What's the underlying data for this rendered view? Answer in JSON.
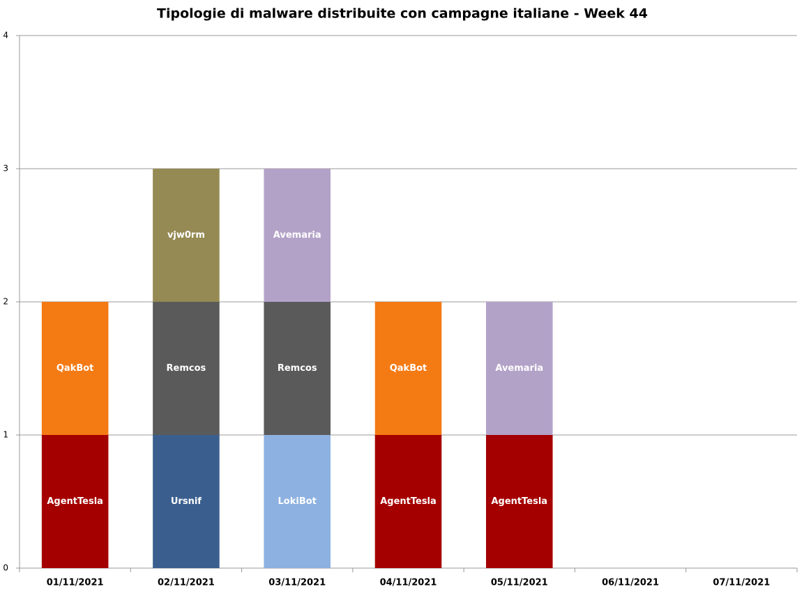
{
  "chart_data": {
    "type": "stacked_bar",
    "title": "Tipologie di malware distribuite con campagne italiane - Week 44",
    "categories": [
      "01/11/2021",
      "02/11/2021",
      "03/11/2021",
      "04/11/2021",
      "05/11/2021",
      "06/11/2021",
      "07/11/2021"
    ],
    "series": [
      {
        "name": "AgentTesla",
        "color": "#a50000",
        "values": [
          1,
          0,
          0,
          1,
          1,
          0,
          0
        ]
      },
      {
        "name": "Ursnif",
        "color": "#3a5f8f",
        "values": [
          0,
          1,
          0,
          0,
          0,
          0,
          0
        ]
      },
      {
        "name": "LokiBot",
        "color": "#8db1e1",
        "values": [
          0,
          0,
          1,
          0,
          0,
          0,
          0
        ]
      },
      {
        "name": "QakBot",
        "color": "#f47a14",
        "values": [
          1,
          0,
          0,
          1,
          0,
          0,
          0
        ]
      },
      {
        "name": "Remcos",
        "color": "#5a5a5a",
        "values": [
          0,
          1,
          1,
          0,
          0,
          0,
          0
        ]
      },
      {
        "name": "Avemaria",
        "color": "#b3a2c8",
        "values": [
          0,
          0,
          1,
          0,
          1,
          0,
          0
        ]
      },
      {
        "name": "vjw0rm",
        "color": "#958a53",
        "values": [
          0,
          1,
          0,
          0,
          0,
          0,
          0
        ]
      }
    ],
    "ylim": [
      0,
      4
    ],
    "yticks": [
      0,
      1,
      2,
      3,
      4
    ],
    "grid": true
  }
}
